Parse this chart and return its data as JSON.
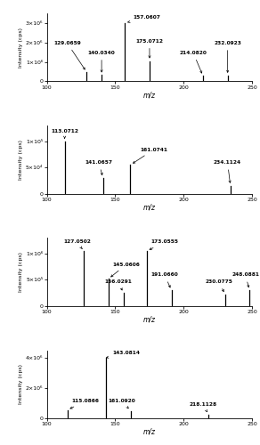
{
  "spectra": [
    {
      "ylim": [
        0,
        3500000.0
      ],
      "yticks": [
        0,
        1000000.0,
        2000000.0,
        3000000.0
      ],
      "ytick_labels": [
        "0",
        "1×10⁶",
        "2×10⁶",
        "3×10⁶"
      ],
      "ylabel": "Intensity (cps)",
      "xlabel": "m/z",
      "xlim": [
        100,
        250
      ],
      "xticks": [
        100,
        150,
        200,
        250
      ],
      "peaks": [
        {
          "mz": 129.0659,
          "intensity": 480000.0,
          "label": "129.0659",
          "ann_x": 115,
          "ann_y": 1850000.0,
          "ha": "center"
        },
        {
          "mz": 140.034,
          "intensity": 320000.0,
          "label": "140.0340",
          "ann_x": 140,
          "ann_y": 1350000.0,
          "ha": "center"
        },
        {
          "mz": 157.0607,
          "intensity": 3000000.0,
          "label": "157.0607",
          "ann_x": 163,
          "ann_y": 3200000.0,
          "ha": "left"
        },
        {
          "mz": 175.0712,
          "intensity": 1050000.0,
          "label": "175.0712",
          "ann_x": 175,
          "ann_y": 1950000.0,
          "ha": "center"
        },
        {
          "mz": 214.082,
          "intensity": 280000.0,
          "label": "214.0820",
          "ann_x": 207,
          "ann_y": 1350000.0,
          "ha": "center"
        },
        {
          "mz": 232.0923,
          "intensity": 300000.0,
          "label": "232.0923",
          "ann_x": 232,
          "ann_y": 1850000.0,
          "ha": "center"
        }
      ]
    },
    {
      "ylim": [
        0,
        130000.0
      ],
      "yticks": [
        0,
        50000.0,
        100000.0
      ],
      "ytick_labels": [
        "0",
        "5×10⁴",
        "1×10⁵"
      ],
      "ylabel": "Intensity (cps)",
      "xlabel": "m/z",
      "xlim": [
        100,
        250
      ],
      "xticks": [
        100,
        150,
        200,
        250
      ],
      "peaks": [
        {
          "mz": 113.0712,
          "intensity": 100000.0,
          "label": "113.0712",
          "ann_x": 113,
          "ann_y": 115000.0,
          "ha": "center"
        },
        {
          "mz": 141.0657,
          "intensity": 30000.0,
          "label": "141.0657",
          "ann_x": 138,
          "ann_y": 55000.0,
          "ha": "center"
        },
        {
          "mz": 161.0741,
          "intensity": 55000.0,
          "label": "161.0741",
          "ann_x": 168,
          "ann_y": 80000.0,
          "ha": "left"
        },
        {
          "mz": 234.1124,
          "intensity": 15000.0,
          "label": "234.1124",
          "ann_x": 232,
          "ann_y": 55000.0,
          "ha": "center"
        }
      ]
    },
    {
      "ylim": [
        0,
        1300000.0
      ],
      "yticks": [
        0,
        500000.0,
        1000000.0
      ],
      "ytick_labels": [
        "0",
        "5×10⁵",
        "1×10⁶"
      ],
      "ylabel": "Intensity (cps)",
      "xlabel": "m/z",
      "xlim": [
        100,
        250
      ],
      "xticks": [
        100,
        150,
        200,
        250
      ],
      "peaks": [
        {
          "mz": 127.0502,
          "intensity": 1050000.0,
          "label": "127.0502",
          "ann_x": 122,
          "ann_y": 1180000.0,
          "ha": "center"
        },
        {
          "mz": 145.0606,
          "intensity": 520000.0,
          "label": "145.0606",
          "ann_x": 148,
          "ann_y": 750000.0,
          "ha": "left"
        },
        {
          "mz": 156.0291,
          "intensity": 250000.0,
          "label": "156.0291",
          "ann_x": 152,
          "ann_y": 420000.0,
          "ha": "center"
        },
        {
          "mz": 173.0555,
          "intensity": 1050000.0,
          "label": "173.0555",
          "ann_x": 176,
          "ann_y": 1180000.0,
          "ha": "left"
        },
        {
          "mz": 191.066,
          "intensity": 300000.0,
          "label": "191.0660",
          "ann_x": 186,
          "ann_y": 550000.0,
          "ha": "center"
        },
        {
          "mz": 230.0775,
          "intensity": 220000.0,
          "label": "230.0775",
          "ann_x": 226,
          "ann_y": 420000.0,
          "ha": "center"
        },
        {
          "mz": 248.0881,
          "intensity": 300000.0,
          "label": "248.0881",
          "ann_x": 245,
          "ann_y": 550000.0,
          "ha": "center"
        }
      ]
    },
    {
      "ylim": [
        0,
        4500000.0
      ],
      "yticks": [
        0,
        2000000.0,
        4000000.0
      ],
      "ytick_labels": [
        "0",
        "2×10⁶",
        "4×10⁶"
      ],
      "ylabel": "Intensity (cps)",
      "xlabel": "m/z",
      "xlim": [
        100,
        250
      ],
      "xticks": [
        100,
        150,
        200,
        250
      ],
      "peaks": [
        {
          "mz": 115.0866,
          "intensity": 550000.0,
          "label": "115.0866",
          "ann_x": 118,
          "ann_y": 1000000.0,
          "ha": "left"
        },
        {
          "mz": 143.0814,
          "intensity": 4000000.0,
          "label": "143.0814",
          "ann_x": 148,
          "ann_y": 4200000.0,
          "ha": "left"
        },
        {
          "mz": 161.092,
          "intensity": 500000.0,
          "label": "161.0920",
          "ann_x": 155,
          "ann_y": 1000000.0,
          "ha": "center"
        },
        {
          "mz": 218.1128,
          "intensity": 250000.0,
          "label": "218.1128",
          "ann_x": 214,
          "ann_y": 750000.0,
          "ha": "center"
        }
      ]
    }
  ]
}
